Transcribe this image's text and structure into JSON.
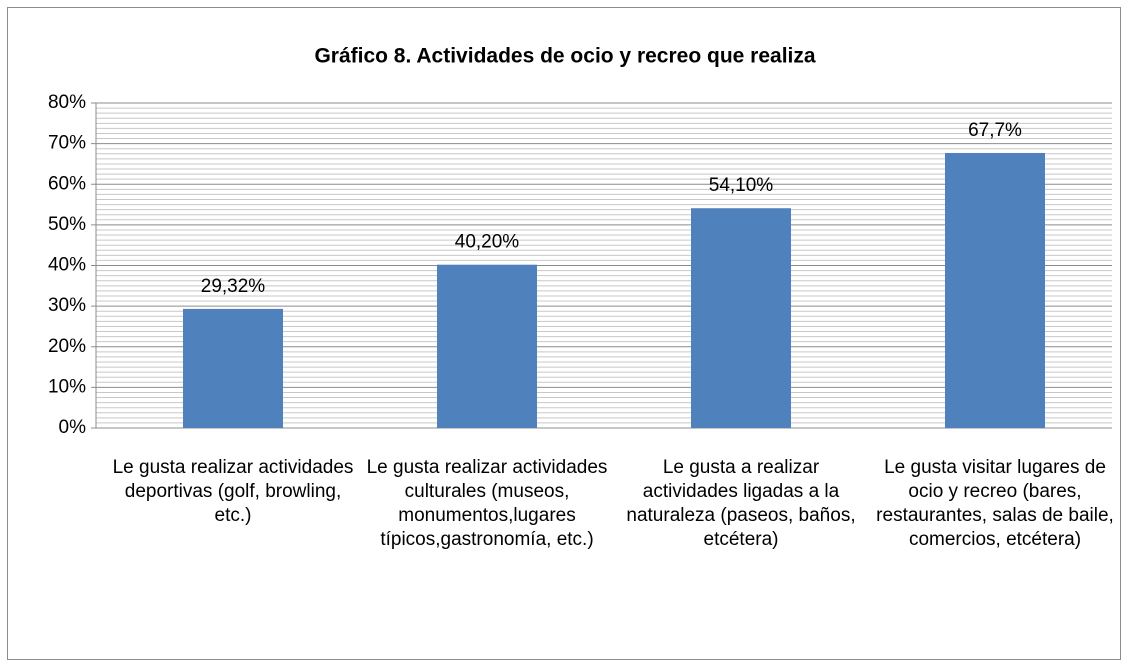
{
  "chart_data": {
    "type": "bar",
    "title": "Gráfico 8. Actividades de ocio y recreo que realiza",
    "categories": [
      "Le gusta realizar actividades deportivas (golf, browling, etc.)",
      "Le gusta realizar actividades culturales (museos, monumentos,lugares típicos,gastronomía, etc.)",
      "Le gusta a realizar actividades ligadas a la naturaleza (paseos, baños, etcétera)",
      "Le gusta visitar lugares de ocio y recreo (bares, restaurantes, salas de baile, comercios, etcétera)"
    ],
    "values": [
      29.32,
      40.2,
      54.1,
      67.7
    ],
    "value_labels": [
      "29,32%",
      "40,20%",
      "54,10%",
      "67,7%"
    ],
    "color": "#4f81bd",
    "ylim": [
      0,
      80
    ],
    "yticks": [
      {
        "value": 0,
        "label": "0%"
      },
      {
        "value": 10,
        "label": "10%"
      },
      {
        "value": 20,
        "label": "20%"
      },
      {
        "value": 30,
        "label": "30%"
      },
      {
        "value": 40,
        "label": "40%"
      },
      {
        "value": 50,
        "label": "50%"
      },
      {
        "value": 60,
        "label": "60%"
      },
      {
        "value": 70,
        "label": "70%"
      },
      {
        "value": 80,
        "label": "80%"
      }
    ],
    "grid": true
  }
}
